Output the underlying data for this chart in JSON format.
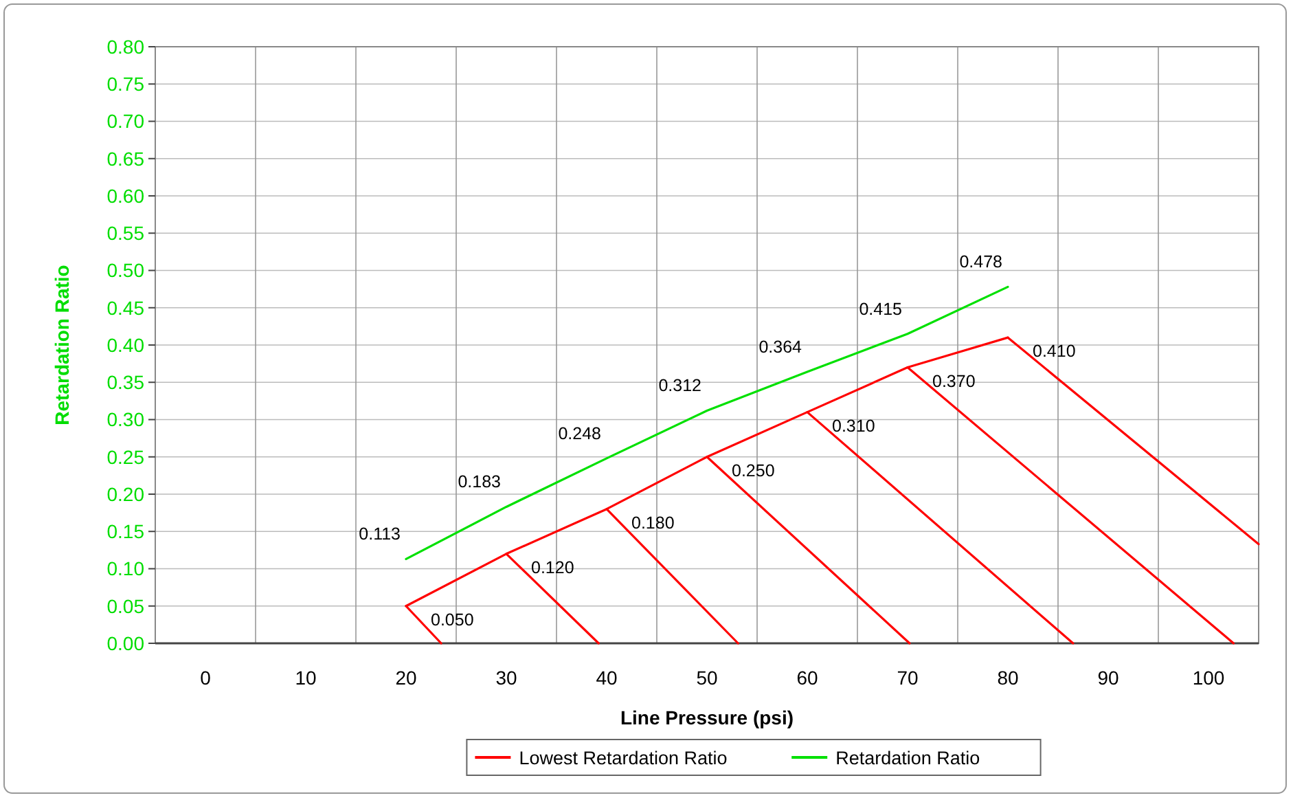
{
  "chart_data": {
    "type": "line",
    "xlabel": "Line Pressure (psi)",
    "ylabel": "Retardation Ratio",
    "xlim": [
      -5,
      105
    ],
    "xticks": [
      0,
      {
        "value": 5,
        "label": null
      },
      10,
      {
        "value": 15,
        "label": null
      },
      20,
      {
        "value": 25,
        "label": null
      },
      30,
      {
        "value": 35,
        "label": null
      },
      40,
      {
        "value": 45,
        "label": null
      },
      50,
      {
        "value": 55,
        "label": null
      },
      60,
      {
        "value": 65,
        "label": null
      },
      70,
      {
        "value": 75,
        "label": null
      },
      80,
      {
        "value": 85,
        "label": null
      },
      90,
      {
        "value": 95,
        "label": null
      },
      100
    ],
    "ylim": [
      0,
      0.8
    ],
    "yticks": [
      {
        "value": 0,
        "label": "0.00"
      },
      {
        "value": 0.05,
        "label": "0.05"
      },
      {
        "value": 0.1,
        "label": "0.10"
      },
      {
        "value": 0.15,
        "label": "0.15"
      },
      {
        "value": 0.2,
        "label": "0.20"
      },
      {
        "value": 0.25,
        "label": "0.25"
      },
      {
        "value": 0.3,
        "label": "0.30"
      },
      {
        "value": 0.35,
        "label": "0.35"
      },
      {
        "value": 0.4,
        "label": "0.40"
      },
      {
        "value": 0.45,
        "label": "0.45"
      },
      {
        "value": 0.5,
        "label": "0.50"
      },
      {
        "value": 0.55,
        "label": "0.55"
      },
      {
        "value": 0.6,
        "label": "0.60"
      },
      {
        "value": 0.65,
        "label": "0.65"
      },
      {
        "value": 0.7,
        "label": "0.70"
      },
      {
        "value": 0.75,
        "label": "0.75"
      },
      {
        "value": 0.8,
        "label": "0.80"
      }
    ],
    "grid": true,
    "legend": "bottom",
    "marker": "none",
    "series": [
      {
        "name": "Lowest Retardation Ratio",
        "color": "#ff0000",
        "x": [
          20,
          30,
          40,
          50,
          60,
          70,
          80
        ],
        "values": [
          0.05,
          0.12,
          0.18,
          0.25,
          0.31,
          0.37,
          0.41
        ],
        "value_labels": [
          "0.050",
          "0.120",
          "0.180",
          "0.250",
          "0.310",
          "0.370",
          "0.410"
        ]
      },
      {
        "name": "Retardation Ratio",
        "color": "#00e000",
        "x": [
          20,
          30,
          40,
          50,
          60,
          70,
          80
        ],
        "values": [
          0.113,
          0.183,
          0.248,
          0.312,
          0.364,
          0.415,
          0.478
        ],
        "value_labels": [
          "0.113",
          "0.183",
          "0.248",
          "0.312",
          "0.364",
          "0.415",
          "0.478"
        ]
      },
      {
        "color": "#ff0000",
        "x": [
          20,
          23.5
        ],
        "values": [
          0.05,
          0
        ]
      },
      {
        "color": "#ff0000",
        "x": [
          30,
          39.2
        ],
        "values": [
          0.12,
          0
        ]
      },
      {
        "color": "#ff0000",
        "x": [
          40,
          53.1
        ],
        "values": [
          0.18,
          0
        ]
      },
      {
        "color": "#ff0000",
        "x": [
          50,
          70.2
        ],
        "values": [
          0.25,
          0
        ]
      },
      {
        "color": "#ff0000",
        "x": [
          60,
          86.5
        ],
        "values": [
          0.31,
          0
        ]
      },
      {
        "color": "#ff0000",
        "x": [
          70,
          102.5
        ],
        "values": [
          0.37,
          0
        ]
      },
      {
        "color": "#ff0000",
        "x": [
          80,
          105
        ],
        "values": [
          0.41,
          0.133
        ]
      }
    ]
  }
}
